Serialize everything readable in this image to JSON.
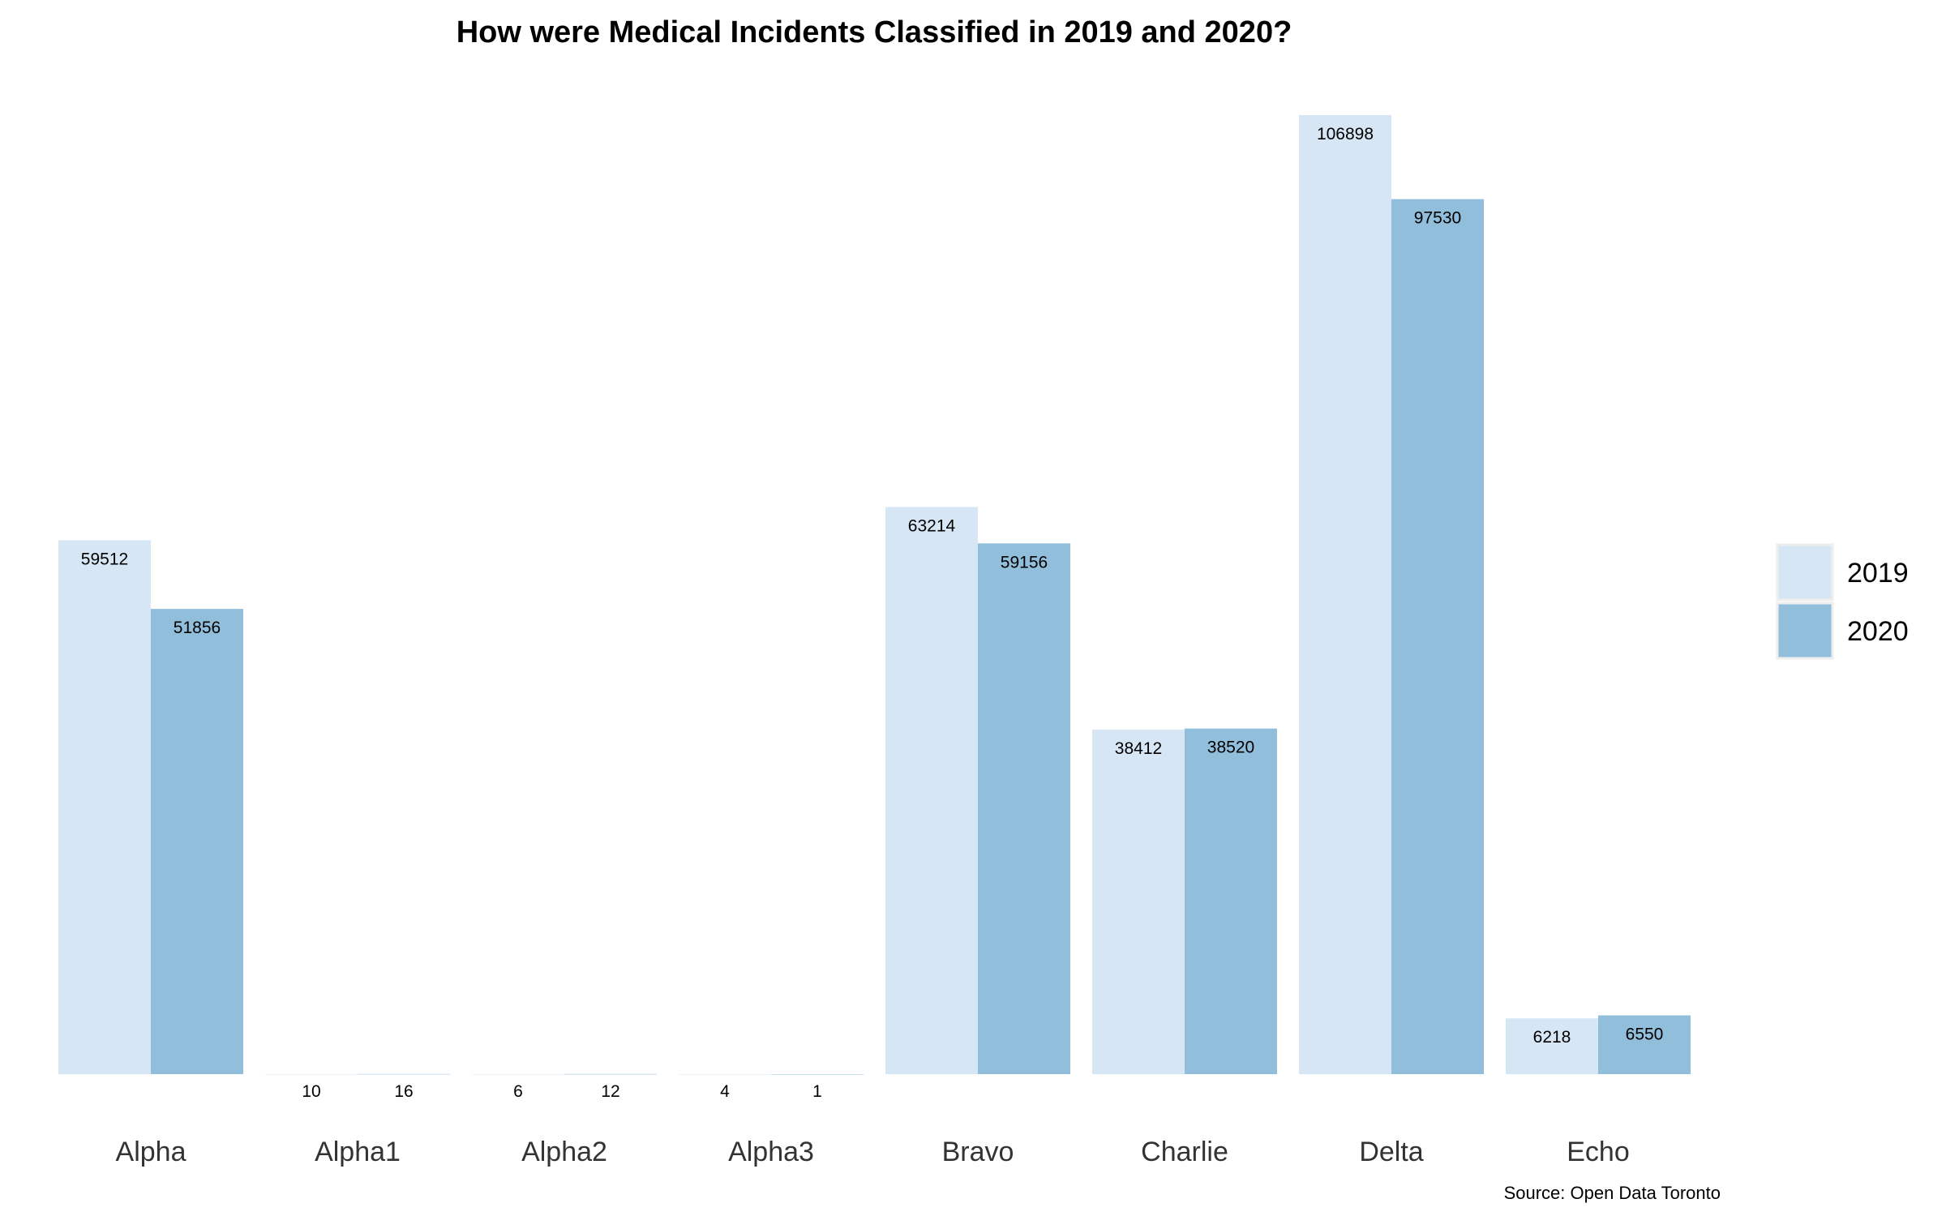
{
  "chart_data": {
    "type": "bar",
    "title": "How were Medical Incidents Classified in 2019 and 2020?",
    "caption": "Source: Open Data Toronto",
    "categories": [
      "Alpha",
      "Alpha1",
      "Alpha2",
      "Alpha3",
      "Bravo",
      "Charlie",
      "Delta",
      "Echo"
    ],
    "series": [
      {
        "name": "2019",
        "color": "#d6e6f5",
        "values": [
          59512,
          10,
          6,
          4,
          63214,
          38412,
          106898,
          6218
        ]
      },
      {
        "name": "2020",
        "color": "#90bedb",
        "values": [
          51856,
          16,
          12,
          1,
          59156,
          38520,
          97530,
          6550
        ]
      }
    ],
    "ylim": [
      0,
      106898
    ],
    "grid": false,
    "legend_position": "right"
  }
}
